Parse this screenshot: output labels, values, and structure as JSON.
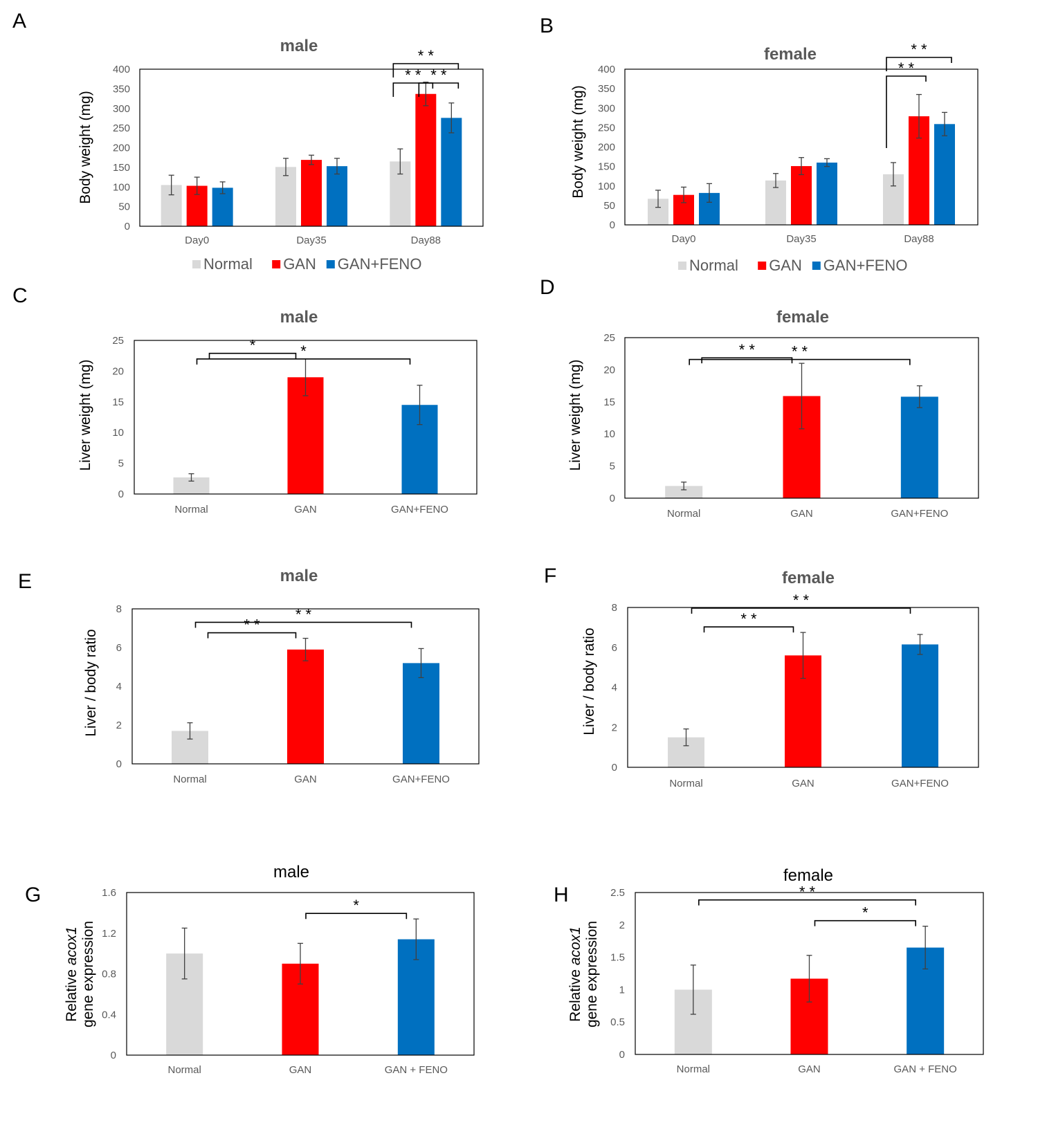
{
  "chart_data": [
    {
      "id": "A",
      "type": "bar",
      "title": "male",
      "ylabel": "Body weight (mg)",
      "categories": [
        "Day0",
        "Day35",
        "Day88"
      ],
      "ylim": [
        0,
        400
      ],
      "yticks": [
        "0",
        "50",
        "100",
        "150",
        "200",
        "250",
        "300",
        "350",
        "400"
      ],
      "series": [
        {
          "name": "Normal",
          "color": "#d9d9d9",
          "values": [
            105,
            151,
            165
          ],
          "errors": [
            25,
            22,
            32
          ]
        },
        {
          "name": "GAN",
          "color": "#ff0000",
          "values": [
            103,
            169,
            337
          ],
          "errors": [
            22,
            12,
            30
          ]
        },
        {
          "name": "GAN+FENO",
          "color": "#0070c0",
          "values": [
            98,
            153,
            276
          ],
          "errors": [
            15,
            20,
            38
          ]
        }
      ],
      "annotations": [
        {
          "from": [
            2,
            0
          ],
          "to": [
            2,
            2
          ],
          "label": "**",
          "level": 1
        },
        {
          "from": [
            2,
            0
          ],
          "to": [
            2,
            1
          ],
          "label": "**",
          "level": 0
        },
        {
          "from": [
            2,
            1
          ],
          "to": [
            2,
            2
          ],
          "label": "**",
          "level": 0
        }
      ],
      "legend": [
        "Normal",
        "GAN",
        "GAN+FENO"
      ]
    },
    {
      "id": "B",
      "type": "bar",
      "title": "female",
      "ylabel": "Body weight (mg)",
      "categories": [
        "Day0",
        "Day35",
        "Day88"
      ],
      "ylim": [
        0,
        400
      ],
      "yticks": [
        "0",
        "50",
        "100",
        "150",
        "200",
        "250",
        "300",
        "350",
        "400"
      ],
      "series": [
        {
          "name": "Normal",
          "color": "#d9d9d9",
          "values": [
            67,
            114,
            130
          ],
          "errors": [
            22,
            18,
            30
          ]
        },
        {
          "name": "GAN",
          "color": "#ff0000",
          "values": [
            77,
            151,
            279
          ],
          "errors": [
            20,
            22,
            56
          ]
        },
        {
          "name": "GAN+FENO",
          "color": "#0070c0",
          "values": [
            82,
            160,
            259
          ],
          "errors": [
            24,
            10,
            30
          ]
        }
      ],
      "annotations": [
        {
          "from": [
            2,
            0
          ],
          "to": [
            2,
            2
          ],
          "label": "**",
          "level": 1
        },
        {
          "from": [
            2,
            0
          ],
          "to": [
            2,
            1
          ],
          "label": "**",
          "level": 0
        }
      ],
      "legend": [
        "Normal",
        "GAN",
        "GAN+FENO"
      ]
    },
    {
      "id": "C",
      "type": "bar",
      "title": "male",
      "ylabel": "Liver weight (mg)",
      "categories": [
        "Normal",
        "GAN",
        "GAN+FENO"
      ],
      "ylim": [
        0,
        25
      ],
      "yticks": [
        "0",
        "5",
        "10",
        "15",
        "20",
        "25"
      ],
      "values": [
        2.7,
        19.0,
        14.5
      ],
      "errors": [
        0.6,
        3.0,
        3.2
      ],
      "colors": [
        "#d9d9d9",
        "#ff0000",
        "#0070c0"
      ],
      "annotations": [
        {
          "from": 0,
          "to": 1,
          "label": "*",
          "level": 0
        },
        {
          "from": 0,
          "to": 2,
          "label": "*",
          "level": 1
        }
      ]
    },
    {
      "id": "D",
      "type": "bar",
      "title": "female",
      "ylabel": "Liver weight (mg)",
      "categories": [
        "Normal",
        "GAN",
        "GAN+FENO"
      ],
      "ylim": [
        0,
        25
      ],
      "yticks": [
        "0",
        "5",
        "10",
        "15",
        "20",
        "25"
      ],
      "values": [
        1.9,
        15.9,
        15.8
      ],
      "errors": [
        0.6,
        5.1,
        1.7
      ],
      "colors": [
        "#d9d9d9",
        "#ff0000",
        "#0070c0"
      ],
      "annotations": [
        {
          "from": 0,
          "to": 1,
          "label": "**",
          "level": 0
        },
        {
          "from": 0,
          "to": 2,
          "label": "**",
          "level": 1
        }
      ]
    },
    {
      "id": "E",
      "type": "bar",
      "title": "male",
      "ylabel": "Liver / body ratio",
      "categories": [
        "Normal",
        "GAN",
        "GAN+FENO"
      ],
      "ylim": [
        0,
        8
      ],
      "yticks": [
        "0",
        "2",
        "4",
        "6",
        "8"
      ],
      "values": [
        1.7,
        5.9,
        5.2
      ],
      "errors": [
        0.42,
        0.58,
        0.75
      ],
      "colors": [
        "#d9d9d9",
        "#ff0000",
        "#0070c0"
      ],
      "annotations": [
        {
          "from": 0,
          "to": 1,
          "label": "**",
          "level": 0
        },
        {
          "from": 0,
          "to": 2,
          "label": "**",
          "level": 1
        }
      ]
    },
    {
      "id": "F",
      "type": "bar",
      "title": "female",
      "ylabel": "Liver / body ratio",
      "categories": [
        "Normal",
        "GAN",
        "GAN+FENO"
      ],
      "ylim": [
        0,
        8
      ],
      "yticks": [
        "0",
        "2",
        "4",
        "6",
        "8"
      ],
      "values": [
        1.5,
        5.6,
        6.15
      ],
      "errors": [
        0.42,
        1.15,
        0.5
      ],
      "colors": [
        "#d9d9d9",
        "#ff0000",
        "#0070c0"
      ],
      "annotations": [
        {
          "from": 0,
          "to": 1,
          "label": "**",
          "level": 0
        },
        {
          "from": 0,
          "to": 2,
          "label": "**",
          "level": 1
        }
      ]
    },
    {
      "id": "G",
      "type": "bar",
      "title": "male",
      "ylabel_line1": "Relative acox1",
      "ylabel_line1_plain": "Relative",
      "ylabel_line1_italic": "acox1",
      "ylabel_line2": "gene expression",
      "categories": [
        "Normal",
        "GAN",
        "GAN + FENO"
      ],
      "ylim": [
        0,
        1.6
      ],
      "yticks": [
        "0",
        "0.4",
        "0.8",
        "1.2",
        "1.6"
      ],
      "values": [
        1.0,
        0.9,
        1.14
      ],
      "errors": [
        0.25,
        0.2,
        0.2
      ],
      "colors": [
        "#d9d9d9",
        "#ff0000",
        "#0070c0"
      ],
      "annotations": [
        {
          "from": 1,
          "to": 2,
          "label": "*",
          "level": 0
        }
      ]
    },
    {
      "id": "H",
      "type": "bar",
      "title": "female",
      "ylabel_line1": "Relative acox1",
      "ylabel_line1_plain": "Relative",
      "ylabel_line1_italic": "acox1",
      "ylabel_line2": "gene expression",
      "categories": [
        "Normal",
        "GAN",
        "GAN + FENO"
      ],
      "ylim": [
        0,
        2.5
      ],
      "yticks": [
        "0",
        "0.5",
        "1",
        "1.5",
        "2",
        "2.5"
      ],
      "values": [
        1.0,
        1.17,
        1.65
      ],
      "errors": [
        0.38,
        0.36,
        0.33
      ],
      "colors": [
        "#d9d9d9",
        "#ff0000",
        "#0070c0"
      ],
      "annotations": [
        {
          "from": 1,
          "to": 2,
          "label": "*",
          "level": 0
        },
        {
          "from": 0,
          "to": 2,
          "label": "**",
          "level": 1
        }
      ]
    }
  ]
}
